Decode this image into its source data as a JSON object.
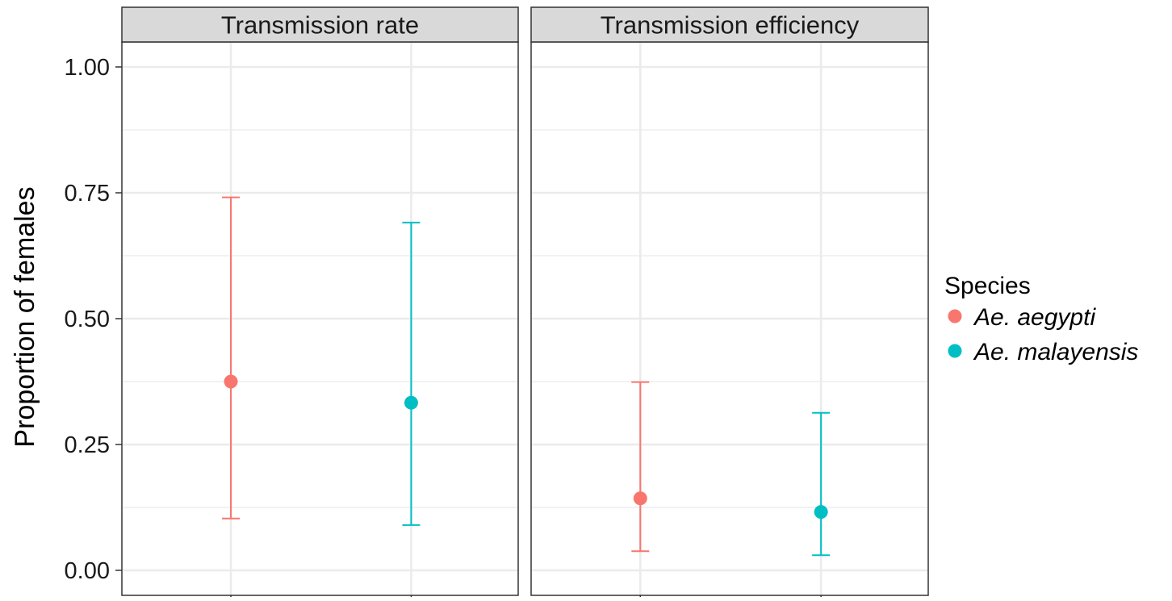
{
  "chart_data": {
    "type": "scatter",
    "subtype": "point-range (faceted)",
    "facets": [
      {
        "label": "Transmission rate"
      },
      {
        "label": "Transmission efficiency"
      }
    ],
    "ylabel": "Proportion of females",
    "xlabel": "",
    "ylim": [
      0,
      1
    ],
    "yticks": [
      "0.00",
      "0.25",
      "0.50",
      "0.75",
      "1.00"
    ],
    "ytick_values": [
      0,
      0.25,
      0.5,
      0.75,
      1.0
    ],
    "grid": true,
    "legend": {
      "title": "Species",
      "position": "right",
      "entries": [
        {
          "label": "Ae. aegypti",
          "color": "#F8766D"
        },
        {
          "label": "Ae. malayensis",
          "color": "#00BFC4"
        }
      ]
    },
    "series": [
      {
        "color": "#F8766D",
        "points": [
          {
            "facet": "Transmission rate",
            "y": 0.375,
            "ymin": 0.103,
            "ymax": 0.741
          },
          {
            "facet": "Transmission efficiency",
            "y": 0.143,
            "ymin": 0.038,
            "ymax": 0.374
          }
        ]
      },
      {
        "color": "#00BFC4",
        "points": [
          {
            "facet": "Transmission rate",
            "y": 0.333,
            "ymin": 0.09,
            "ymax": 0.691
          },
          {
            "facet": "Transmission efficiency",
            "y": 0.116,
            "ymin": 0.03,
            "ymax": 0.313
          }
        ]
      }
    ]
  }
}
